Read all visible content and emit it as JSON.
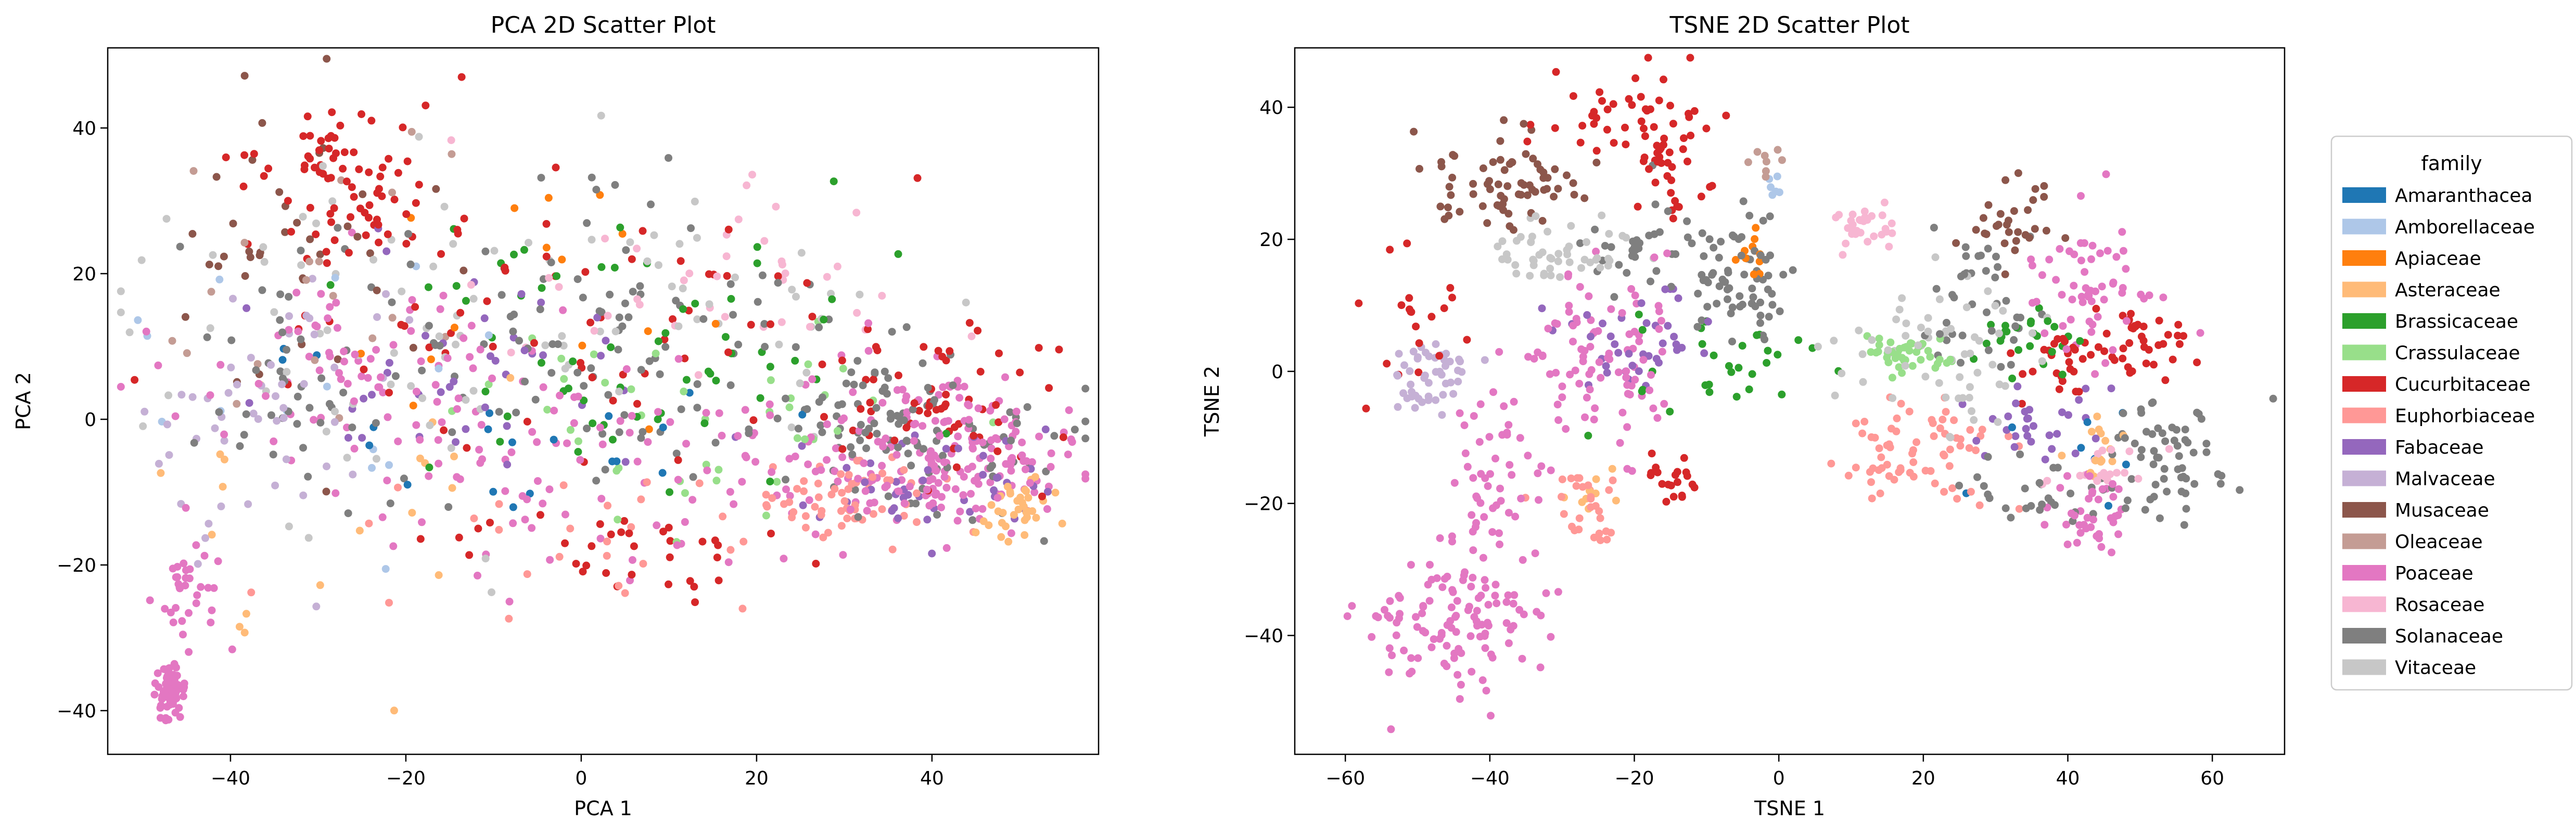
{
  "families": [
    {
      "name": "Amaranthacea",
      "color": "#1f77b4"
    },
    {
      "name": "Amborellaceae",
      "color": "#aec7e8"
    },
    {
      "name": "Apiaceae",
      "color": "#ff7f0e"
    },
    {
      "name": "Asteraceae",
      "color": "#ffbb78"
    },
    {
      "name": "Brassicaceae",
      "color": "#2ca02c"
    },
    {
      "name": "Crassulaceae",
      "color": "#98df8a"
    },
    {
      "name": "Cucurbitaceae",
      "color": "#d62728"
    },
    {
      "name": "Euphorbiaceae",
      "color": "#ff9896"
    },
    {
      "name": "Fabaceae",
      "color": "#9467bd"
    },
    {
      "name": "Malvaceae",
      "color": "#c5b0d5"
    },
    {
      "name": "Musaceae",
      "color": "#8c564b"
    },
    {
      "name": "Oleaceae",
      "color": "#c49c94"
    },
    {
      "name": "Poaceae",
      "color": "#e377c2"
    },
    {
      "name": "Rosaceae",
      "color": "#f7b6d2"
    },
    {
      "name": "Solanaceae",
      "color": "#7f7f7f"
    },
    {
      "name": "Vitaceae",
      "color": "#c7c7c7"
    }
  ],
  "legend": {
    "title": "family",
    "placement": "outside-right"
  },
  "chart_data": [
    {
      "type": "scatter",
      "title": "PCA 2D Scatter Plot",
      "xlabel": "PCA 1",
      "ylabel": "PCA 2",
      "xlim": [
        -54,
        59
      ],
      "ylim": [
        -46,
        51
      ],
      "xticks": [
        -40,
        -20,
        0,
        20,
        40
      ],
      "yticks": [
        -40,
        -20,
        0,
        20,
        40
      ],
      "grid": false,
      "clusters": [
        {
          "family": "Poaceae",
          "cx": -47,
          "cy": -38,
          "sx": 0.8,
          "sy": 2.0,
          "n": 70
        },
        {
          "family": "Poaceae",
          "cx": -45,
          "cy": -23,
          "sx": 1.8,
          "sy": 4.5,
          "n": 35
        },
        {
          "family": "Poaceae",
          "cx": 42,
          "cy": -5,
          "sx": 7.0,
          "sy": 5.0,
          "n": 170
        },
        {
          "family": "Poaceae",
          "cx": 25,
          "cy": -5,
          "sx": 9.0,
          "sy": 6.0,
          "n": 60
        },
        {
          "family": "Poaceae",
          "cx": -25,
          "cy": 8,
          "sx": 10.0,
          "sy": 6.0,
          "n": 70
        },
        {
          "family": "Poaceae",
          "cx": -5,
          "cy": -8,
          "sx": 14.0,
          "sy": 9.0,
          "n": 70
        },
        {
          "family": "Solanaceae",
          "cx": 38,
          "cy": -2,
          "sx": 9.0,
          "sy": 6.0,
          "n": 110
        },
        {
          "family": "Solanaceae",
          "cx": -5,
          "cy": 10,
          "sx": 18.0,
          "sy": 10.0,
          "n": 110
        },
        {
          "family": "Solanaceae",
          "cx": -32,
          "cy": 2,
          "sx": 5.0,
          "sy": 6.0,
          "n": 30
        },
        {
          "family": "Cucurbitaceae",
          "cx": 42,
          "cy": 3,
          "sx": 7.0,
          "sy": 6.0,
          "n": 60
        },
        {
          "family": "Cucurbitaceae",
          "cx": -27,
          "cy": 33,
          "sx": 6.0,
          "sy": 7.0,
          "n": 80
        },
        {
          "family": "Cucurbitaceae",
          "cx": -5,
          "cy": 15,
          "sx": 16.0,
          "sy": 10.0,
          "n": 60
        },
        {
          "family": "Cucurbitaceae",
          "cx": 5,
          "cy": -18,
          "sx": 12.0,
          "sy": 4.0,
          "n": 35
        },
        {
          "family": "Euphorbiaceae",
          "cx": 28,
          "cy": -11,
          "sx": 6.0,
          "sy": 3.0,
          "n": 60
        },
        {
          "family": "Euphorbiaceae",
          "cx": 0,
          "cy": -15,
          "sx": 18.0,
          "sy": 7.0,
          "n": 30
        },
        {
          "family": "Fabaceae",
          "cx": 38,
          "cy": -8,
          "sx": 7.0,
          "sy": 4.0,
          "n": 45
        },
        {
          "family": "Fabaceae",
          "cx": -10,
          "cy": 5,
          "sx": 12.0,
          "sy": 8.0,
          "n": 40
        },
        {
          "family": "Asteraceae",
          "cx": 50,
          "cy": -12,
          "sx": 2.5,
          "sy": 2.5,
          "n": 35
        },
        {
          "family": "Asteraceae",
          "cx": -30,
          "cy": -10,
          "sx": 12.0,
          "sy": 10.0,
          "n": 20
        },
        {
          "family": "Brassicaceae",
          "cx": 10,
          "cy": 10,
          "sx": 18.0,
          "sy": 10.0,
          "n": 60
        },
        {
          "family": "Crassulaceae",
          "cx": 12,
          "cy": 0,
          "sx": 14.0,
          "sy": 7.0,
          "n": 40
        },
        {
          "family": "Vitaceae",
          "cx": -20,
          "cy": 15,
          "sx": 16.0,
          "sy": 12.0,
          "n": 70
        },
        {
          "family": "Vitaceae",
          "cx": 20,
          "cy": 15,
          "sx": 10.0,
          "sy": 7.0,
          "n": 25
        },
        {
          "family": "Malvaceae",
          "cx": -35,
          "cy": 0,
          "sx": 8.0,
          "sy": 10.0,
          "n": 50
        },
        {
          "family": "Musaceae",
          "cx": -33,
          "cy": 25,
          "sx": 7.0,
          "sy": 10.0,
          "n": 40
        },
        {
          "family": "Rosaceae",
          "cx": 15,
          "cy": 20,
          "sx": 15.0,
          "sy": 9.0,
          "n": 40
        },
        {
          "family": "Oleaceae",
          "cx": -30,
          "cy": 15,
          "sx": 10.0,
          "sy": 10.0,
          "n": 20
        },
        {
          "family": "Amborellaceae",
          "cx": -30,
          "cy": 5,
          "sx": 10.0,
          "sy": 10.0,
          "n": 15
        },
        {
          "family": "Apiaceae",
          "cx": 0,
          "cy": 20,
          "sx": 15.0,
          "sy": 10.0,
          "n": 15
        },
        {
          "family": "Amaranthacea",
          "cx": -10,
          "cy": 0,
          "sx": 18.0,
          "sy": 8.0,
          "n": 20
        }
      ]
    },
    {
      "type": "scatter",
      "title": "TSNE 2D Scatter Plot",
      "xlabel": "TSNE 1",
      "ylabel": "TSNE 2",
      "xlim": [
        -67,
        70
      ],
      "ylim": [
        -58,
        49
      ],
      "xticks": [
        -60,
        -40,
        -20,
        0,
        20,
        40,
        60
      ],
      "yticks": [
        -40,
        -20,
        0,
        20,
        40
      ],
      "grid": false,
      "clusters": [
        {
          "family": "Poaceae",
          "cx": -45,
          "cy": -38,
          "sx": 6.0,
          "sy": 5.0,
          "n": 120
        },
        {
          "family": "Poaceae",
          "cx": -40,
          "cy": -17,
          "sx": 3.0,
          "sy": 6.0,
          "n": 50
        },
        {
          "family": "Poaceae",
          "cx": -25,
          "cy": 2,
          "sx": 6.0,
          "sy": 6.0,
          "n": 90
        },
        {
          "family": "Poaceae",
          "cx": 43,
          "cy": 12,
          "sx": 5.0,
          "sy": 6.0,
          "n": 60
        },
        {
          "family": "Poaceae",
          "cx": 43,
          "cy": -22,
          "sx": 3.0,
          "sy": 3.0,
          "n": 40
        },
        {
          "family": "Solanaceae",
          "cx": -5,
          "cy": 15,
          "sx": 4.0,
          "sy": 5.0,
          "n": 70
        },
        {
          "family": "Solanaceae",
          "cx": -20,
          "cy": 20,
          "sx": 4.0,
          "sy": 4.0,
          "n": 30
        },
        {
          "family": "Solanaceae",
          "cx": 55,
          "cy": -12,
          "sx": 4.0,
          "sy": 5.0,
          "n": 60
        },
        {
          "family": "Solanaceae",
          "cx": 28,
          "cy": 10,
          "sx": 4.0,
          "sy": 5.0,
          "n": 40
        },
        {
          "family": "Solanaceae",
          "cx": 35,
          "cy": -18,
          "sx": 6.0,
          "sy": 3.0,
          "n": 30
        },
        {
          "family": "Cucurbitaceae",
          "cx": -20,
          "cy": 38,
          "sx": 6.0,
          "sy": 4.0,
          "n": 50
        },
        {
          "family": "Cucurbitaceae",
          "cx": -15,
          "cy": 30,
          "sx": 3.0,
          "sy": 3.0,
          "n": 25
        },
        {
          "family": "Cucurbitaceae",
          "cx": 50,
          "cy": 5,
          "sx": 4.0,
          "sy": 3.0,
          "n": 40
        },
        {
          "family": "Cucurbitaceae",
          "cx": -14,
          "cy": -16,
          "sx": 2.0,
          "sy": 2.0,
          "n": 20
        },
        {
          "family": "Cucurbitaceae",
          "cx": 38,
          "cy": 2,
          "sx": 3.0,
          "sy": 2.0,
          "n": 25
        },
        {
          "family": "Cucurbitaceae",
          "cx": -50,
          "cy": 8,
          "sx": 4.0,
          "sy": 6.0,
          "n": 20
        },
        {
          "family": "Musaceae",
          "cx": -38,
          "cy": 28,
          "sx": 5.0,
          "sy": 4.0,
          "n": 70
        },
        {
          "family": "Musaceae",
          "cx": 32,
          "cy": 23,
          "sx": 3.0,
          "sy": 3.0,
          "n": 30
        },
        {
          "family": "Euphorbiaceae",
          "cx": 20,
          "cy": -13,
          "sx": 6.0,
          "sy": 4.0,
          "n": 70
        },
        {
          "family": "Euphorbiaceae",
          "cx": -28,
          "cy": -20,
          "sx": 4.0,
          "sy": 3.0,
          "n": 30
        },
        {
          "family": "Malvaceae",
          "cx": -48,
          "cy": -1,
          "sx": 3.0,
          "sy": 3.0,
          "n": 50
        },
        {
          "family": "Vitaceae",
          "cx": -30,
          "cy": 18,
          "sx": 5.0,
          "sy": 3.0,
          "n": 50
        },
        {
          "family": "Vitaceae",
          "cx": 22,
          "cy": 2,
          "sx": 6.0,
          "sy": 6.0,
          "n": 60
        },
        {
          "family": "Crassulaceae",
          "cx": 18,
          "cy": 2,
          "sx": 3.0,
          "sy": 2.0,
          "n": 40
        },
        {
          "family": "Rosaceae",
          "cx": 12,
          "cy": 22,
          "sx": 2.0,
          "sy": 2.0,
          "n": 30
        },
        {
          "family": "Rosaceae",
          "cx": 45,
          "cy": -14,
          "sx": 3.0,
          "sy": 2.0,
          "n": 20
        },
        {
          "family": "Fabaceae",
          "cx": -20,
          "cy": 5,
          "sx": 5.0,
          "sy": 4.0,
          "n": 40
        },
        {
          "family": "Fabaceae",
          "cx": 35,
          "cy": -8,
          "sx": 4.0,
          "sy": 3.0,
          "n": 30
        },
        {
          "family": "Brassicaceae",
          "cx": -10,
          "cy": 0,
          "sx": 8.0,
          "sy": 4.0,
          "n": 30
        },
        {
          "family": "Brassicaceae",
          "cx": 35,
          "cy": 5,
          "sx": 5.0,
          "sy": 3.0,
          "n": 25
        },
        {
          "family": "Asteraceae",
          "cx": 45,
          "cy": -10,
          "sx": 2.0,
          "sy": 3.0,
          "n": 15
        },
        {
          "family": "Asteraceae",
          "cx": -27,
          "cy": -18,
          "sx": 3.0,
          "sy": 2.0,
          "n": 10
        },
        {
          "family": "Oleaceae",
          "cx": -2,
          "cy": 32,
          "sx": 1.5,
          "sy": 1.5,
          "n": 8
        },
        {
          "family": "Apiaceae",
          "cx": -3,
          "cy": 18,
          "sx": 2.0,
          "sy": 3.0,
          "n": 10
        },
        {
          "family": "Amborellaceae",
          "cx": 0,
          "cy": 28,
          "sx": 1.5,
          "sy": 1.5,
          "n": 6
        },
        {
          "family": "Amaranthacea",
          "cx": 40,
          "cy": -10,
          "sx": 8.0,
          "sy": 8.0,
          "n": 8
        }
      ]
    }
  ]
}
